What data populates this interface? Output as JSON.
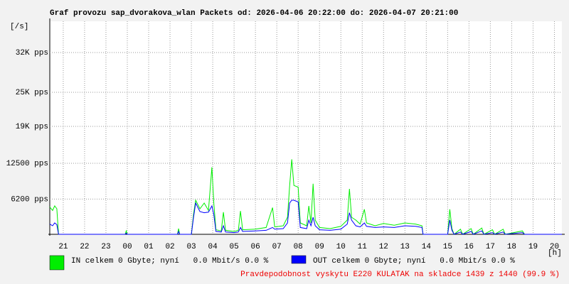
{
  "chart_data": {
    "type": "line",
    "title": "Graf provozu sap_dvorakova_wlan Packets od: 2026-04-06 20:22:00 do: 2026-04-07 20:21:00",
    "y_label": "[/s]",
    "x_label": "[h]",
    "xlim": [
      20.37,
      44.35
    ],
    "xticks": [
      21,
      22,
      23,
      {
        "value": 24,
        "label": "00"
      },
      {
        "value": 25,
        "label": "01"
      },
      {
        "value": 26,
        "label": "02"
      },
      {
        "value": 27,
        "label": "03"
      },
      {
        "value": 28,
        "label": "04"
      },
      {
        "value": 29,
        "label": "05"
      },
      {
        "value": 30,
        "label": "06"
      },
      {
        "value": 31,
        "label": "07"
      },
      {
        "value": 32,
        "label": "08"
      },
      {
        "value": 33,
        "label": "09"
      },
      {
        "value": 34,
        "label": "10"
      },
      {
        "value": 35,
        "label": "11"
      },
      {
        "value": 36,
        "label": "12"
      },
      {
        "value": 37,
        "label": "13"
      },
      {
        "value": 38,
        "label": "14"
      },
      {
        "value": 39,
        "label": "15"
      },
      {
        "value": 40,
        "label": "16"
      },
      {
        "value": 41,
        "label": "17"
      },
      {
        "value": 42,
        "label": "18"
      },
      {
        "value": 43,
        "label": "19"
      },
      {
        "value": 44,
        "label": "20"
      }
    ],
    "ylim": [
      0,
      37500
    ],
    "yticks": [
      {
        "value": 6200,
        "label": "6200 pps"
      },
      {
        "value": 12500,
        "label": "12500 pps"
      },
      {
        "value": 19000,
        "label": "19K pps"
      },
      {
        "value": 25000,
        "label": "25K pps"
      },
      {
        "value": 32000,
        "label": "32K pps"
      }
    ],
    "grid": true,
    "x": [
      20.37,
      20.5,
      20.6,
      20.7,
      20.78,
      23.9,
      23.95,
      24.0,
      26.35,
      26.4,
      26.45,
      27.0,
      27.1,
      27.2,
      27.4,
      27.6,
      27.8,
      27.96,
      28.05,
      28.15,
      28.4,
      28.5,
      28.6,
      29.0,
      29.2,
      29.3,
      29.4,
      30.0,
      30.5,
      30.8,
      30.9,
      31.3,
      31.5,
      31.6,
      31.7,
      31.8,
      32.0,
      32.1,
      32.4,
      32.5,
      32.6,
      32.7,
      32.8,
      33.0,
      33.5,
      34.0,
      34.3,
      34.4,
      34.5,
      34.7,
      34.9,
      35.1,
      35.2,
      35.6,
      36.0,
      36.5,
      37.0,
      37.5,
      37.8,
      37.85,
      39.0,
      39.1,
      39.2,
      39.3,
      39.6,
      39.7,
      40.1,
      40.2,
      40.6,
      40.7,
      41.1,
      41.2,
      41.6,
      41.7,
      42.5,
      42.6,
      44.35
    ],
    "series": [
      {
        "name": "IN celkem 0 Gbyte; nyní   0.0 Mbit/s 0.0 %",
        "color": "#00ee00",
        "values": [
          4800,
          4200,
          5000,
          4500,
          0,
          0,
          600,
          0,
          0,
          1000,
          0,
          0,
          3500,
          6000,
          4500,
          5500,
          4200,
          11800,
          5500,
          800,
          600,
          3900,
          700,
          500,
          700,
          4100,
          800,
          900,
          1200,
          4700,
          1300,
          1500,
          3000,
          8500,
          13200,
          8600,
          8300,
          2000,
          1500,
          5000,
          2000,
          8900,
          2500,
          1200,
          1000,
          1400,
          2500,
          8000,
          3000,
          2500,
          1800,
          4400,
          2000,
          1500,
          1900,
          1600,
          2000,
          1800,
          1500,
          0,
          0,
          4400,
          1000,
          0,
          900,
          0,
          1000,
          0,
          1100,
          0,
          800,
          0,
          900,
          0,
          600,
          0,
          0
        ]
      },
      {
        "name": "OUT celkem 0 Gbyte; nyní   0.0 Mbit/s 0.0 %",
        "color": "#0000ff",
        "values": [
          1800,
          1500,
          2000,
          1700,
          0,
          0,
          200,
          0,
          0,
          500,
          0,
          0,
          3000,
          5500,
          4000,
          3800,
          3900,
          5000,
          3500,
          500,
          400,
          1500,
          400,
          300,
          400,
          1200,
          500,
          600,
          700,
          1200,
          900,
          1000,
          2000,
          5500,
          6000,
          6000,
          5700,
          1200,
          1000,
          2500,
          1500,
          3000,
          1500,
          800,
          700,
          900,
          1800,
          3800,
          2500,
          1500,
          1300,
          2000,
          1400,
          1200,
          1300,
          1200,
          1500,
          1400,
          1200,
          0,
          0,
          2500,
          700,
          0,
          400,
          0,
          500,
          0,
          600,
          0,
          300,
          0,
          400,
          0,
          300,
          0,
          0
        ]
      }
    ],
    "note": "Pravdepodobnost vyskytu E220 KULATAK na skladce 1439 z 1440 (99.9 %)"
  }
}
